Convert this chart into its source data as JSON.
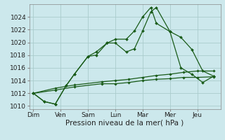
{
  "xlabel": "Pression niveau de la mer( hPa )",
  "background_color": "#cce8ec",
  "grid_color": "#aacccc",
  "line_color": "#1a5c1a",
  "xtick_labels": [
    "Dim",
    "Ven",
    "Sam",
    "Lun",
    "Mar",
    "Mer",
    "Jeu"
  ],
  "xtick_positions": [
    0,
    1,
    2,
    3,
    4,
    5,
    6
  ],
  "ylim": [
    1009.5,
    1026.0
  ],
  "yticks": [
    1010,
    1012,
    1014,
    1016,
    1018,
    1020,
    1022,
    1024
  ],
  "series": [
    {
      "x": [
        0,
        0.4,
        0.8,
        1.2,
        1.5,
        2.0,
        2.3,
        2.7,
        3.0,
        3.4,
        3.7,
        4.0,
        4.3,
        4.5,
        5.0,
        5.4,
        5.8,
        6.2,
        6.6
      ],
      "y": [
        1012,
        1010.7,
        1010.3,
        1013.2,
        1015.0,
        1017.8,
        1018.0,
        1019.9,
        1019.9,
        1018.5,
        1019.0,
        1021.8,
        1024.8,
        1025.5,
        1021.7,
        1016.0,
        1015.0,
        1013.7,
        1014.7
      ]
    },
    {
      "x": [
        0,
        0.4,
        0.8,
        1.2,
        1.5,
        2.0,
        2.3,
        2.7,
        3.0,
        3.4,
        3.7,
        4.0,
        4.3,
        4.5,
        5.0,
        5.4,
        5.8,
        6.2,
        6.6
      ],
      "y": [
        1012,
        1010.7,
        1010.3,
        1013.2,
        1015.0,
        1017.8,
        1018.5,
        1019.9,
        1020.5,
        1020.5,
        1021.8,
        1024.0,
        1025.5,
        1023.0,
        1021.7,
        1020.8,
        1018.9,
        1015.5,
        1014.7
      ]
    },
    {
      "x": [
        0,
        0.8,
        1.5,
        2.5,
        3.0,
        3.5,
        4.0,
        4.5,
        5.0,
        5.5,
        6.0,
        6.6
      ],
      "y": [
        1012,
        1012.5,
        1013.0,
        1013.5,
        1013.5,
        1013.7,
        1014.0,
        1014.2,
        1014.3,
        1014.5,
        1014.5,
        1014.6
      ]
    },
    {
      "x": [
        0,
        0.8,
        1.5,
        2.5,
        3.0,
        3.5,
        4.0,
        4.5,
        5.0,
        5.5,
        6.0,
        6.6
      ],
      "y": [
        1012,
        1012.8,
        1013.3,
        1013.8,
        1014.0,
        1014.2,
        1014.5,
        1014.8,
        1015.0,
        1015.3,
        1015.5,
        1015.5
      ]
    }
  ]
}
